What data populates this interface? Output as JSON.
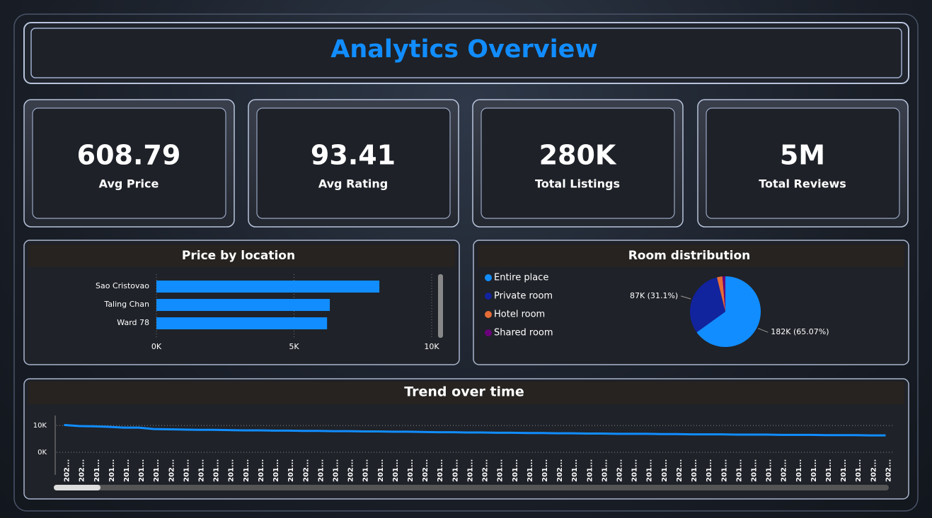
{
  "header": {
    "title": "Analytics Overview"
  },
  "kpis": [
    {
      "value": "608.79",
      "label": "Avg Price"
    },
    {
      "value": "93.41",
      "label": "Avg Rating"
    },
    {
      "value": "280K",
      "label": "Total Listings"
    },
    {
      "value": "5M",
      "label": "Total Reviews"
    }
  ],
  "chart_data": [
    {
      "type": "hbar",
      "title": "Price by location",
      "categories": [
        "Sao Cristovao",
        "Taling Chan",
        "Ward 78"
      ],
      "values": [
        8100,
        6300,
        6200
      ],
      "color": "#118dff",
      "xlim": [
        0,
        10000
      ],
      "xticks": [
        {
          "value": 0,
          "label": "0K"
        },
        {
          "value": 5000,
          "label": "5K"
        },
        {
          "value": 10000,
          "label": "10K"
        }
      ],
      "grid": true
    },
    {
      "type": "pie",
      "title": "Room distribution",
      "categories": [
        "Entire place",
        "Private room",
        "Hotel room",
        "Shared room"
      ],
      "values": [
        65.07,
        31.1,
        2.5,
        1.33
      ],
      "value_labels": [
        "182K (65.07%)",
        "87K (31.1%)",
        null,
        null
      ],
      "colors": [
        "#118dff",
        "#12239e",
        "#e66c37",
        "#6b007b"
      ],
      "legend": "left"
    },
    {
      "type": "line",
      "title": "Trend over time",
      "categories": [
        "202...",
        "202...",
        "201...",
        "201...",
        "201...",
        "201...",
        "201...",
        "202...",
        "201...",
        "201...",
        "201...",
        "201...",
        "201...",
        "201...",
        "201...",
        "201...",
        "202...",
        "201...",
        "201...",
        "202...",
        "201...",
        "201...",
        "201...",
        "201...",
        "202...",
        "201...",
        "201...",
        "201...",
        "202...",
        "201...",
        "201...",
        "201...",
        "201...",
        "202...",
        "201...",
        "201...",
        "201...",
        "202...",
        "201...",
        "201...",
        "201...",
        "202...",
        "201...",
        "201...",
        "201...",
        "201...",
        "201...",
        "201...",
        "202...",
        "201...",
        "201...",
        "201...",
        "201...",
        "201...",
        "202...",
        "202..."
      ],
      "values": [
        10200,
        9800,
        9700,
        9500,
        9200,
        9200,
        8700,
        8600,
        8500,
        8400,
        8400,
        8300,
        8200,
        8200,
        8100,
        8100,
        8000,
        8000,
        7900,
        7900,
        7800,
        7800,
        7700,
        7700,
        7600,
        7500,
        7500,
        7400,
        7400,
        7300,
        7300,
        7200,
        7200,
        7100,
        7100,
        7000,
        7000,
        6900,
        6900,
        6900,
        6800,
        6800,
        6700,
        6700,
        6700,
        6600,
        6600,
        6600,
        6500,
        6500,
        6500,
        6400,
        6400,
        6400,
        6300,
        6300
      ],
      "color": "#118dff",
      "ylim": [
        0,
        14000
      ],
      "yticks": [
        {
          "value": 0,
          "label": "0K"
        },
        {
          "value": 10000,
          "label": "10K"
        }
      ],
      "grid": true
    }
  ]
}
